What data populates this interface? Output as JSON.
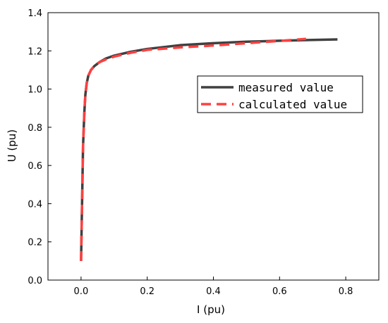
{
  "chart_data": {
    "type": "line",
    "xlabel": "I (pu)",
    "ylabel": "U (pu)",
    "xlim": [
      -0.1,
      0.9
    ],
    "ylim": [
      0.0,
      1.4
    ],
    "xticks": [
      "0.0",
      "0.2",
      "0.4",
      "0.6",
      "0.8"
    ],
    "yticks": [
      "0.0",
      "0.2",
      "0.4",
      "0.6",
      "0.8",
      "1.0",
      "1.2",
      "1.4"
    ],
    "grid": false,
    "legend_position": "center-right",
    "series": [
      {
        "name": "measured value",
        "color": "#404040",
        "style": "solid",
        "x": [
          0.0,
          0.003,
          0.006,
          0.01,
          0.013,
          0.017,
          0.022,
          0.03,
          0.04,
          0.055,
          0.075,
          0.1,
          0.15,
          0.2,
          0.3,
          0.4,
          0.5,
          0.6,
          0.7,
          0.775
        ],
        "y": [
          0.1,
          0.4,
          0.7,
          0.88,
          0.97,
          1.03,
          1.07,
          1.1,
          1.12,
          1.14,
          1.16,
          1.175,
          1.195,
          1.21,
          1.23,
          1.24,
          1.248,
          1.253,
          1.257,
          1.26
        ]
      },
      {
        "name": "calculated value",
        "color": "#ff4040",
        "style": "dashed",
        "x": [
          0.0,
          0.003,
          0.006,
          0.01,
          0.013,
          0.017,
          0.022,
          0.03,
          0.04,
          0.055,
          0.075,
          0.1,
          0.15,
          0.2,
          0.3,
          0.4,
          0.5,
          0.6,
          0.68
        ],
        "y": [
          0.1,
          0.4,
          0.7,
          0.88,
          0.97,
          1.03,
          1.07,
          1.1,
          1.12,
          1.14,
          1.155,
          1.17,
          1.19,
          1.205,
          1.218,
          1.228,
          1.24,
          1.252,
          1.263
        ]
      }
    ]
  }
}
